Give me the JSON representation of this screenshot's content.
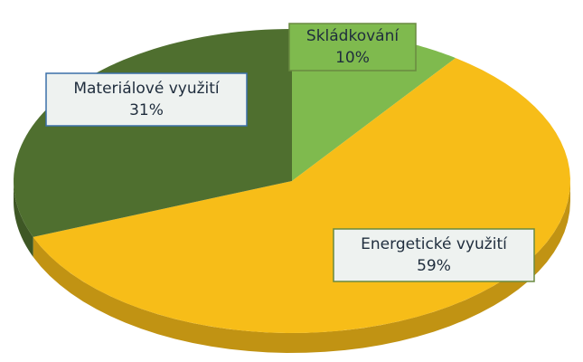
{
  "chart_data": {
    "type": "pie",
    "categories": [
      "Skládkování",
      "Energetické využití",
      "Materiálové využití"
    ],
    "values": [
      10,
      59,
      31
    ],
    "value_labels": [
      "10%",
      "59%",
      "31%"
    ],
    "colors": [
      "#7fba4e",
      "#f7bd18",
      "#4f6f2f"
    ]
  }
}
